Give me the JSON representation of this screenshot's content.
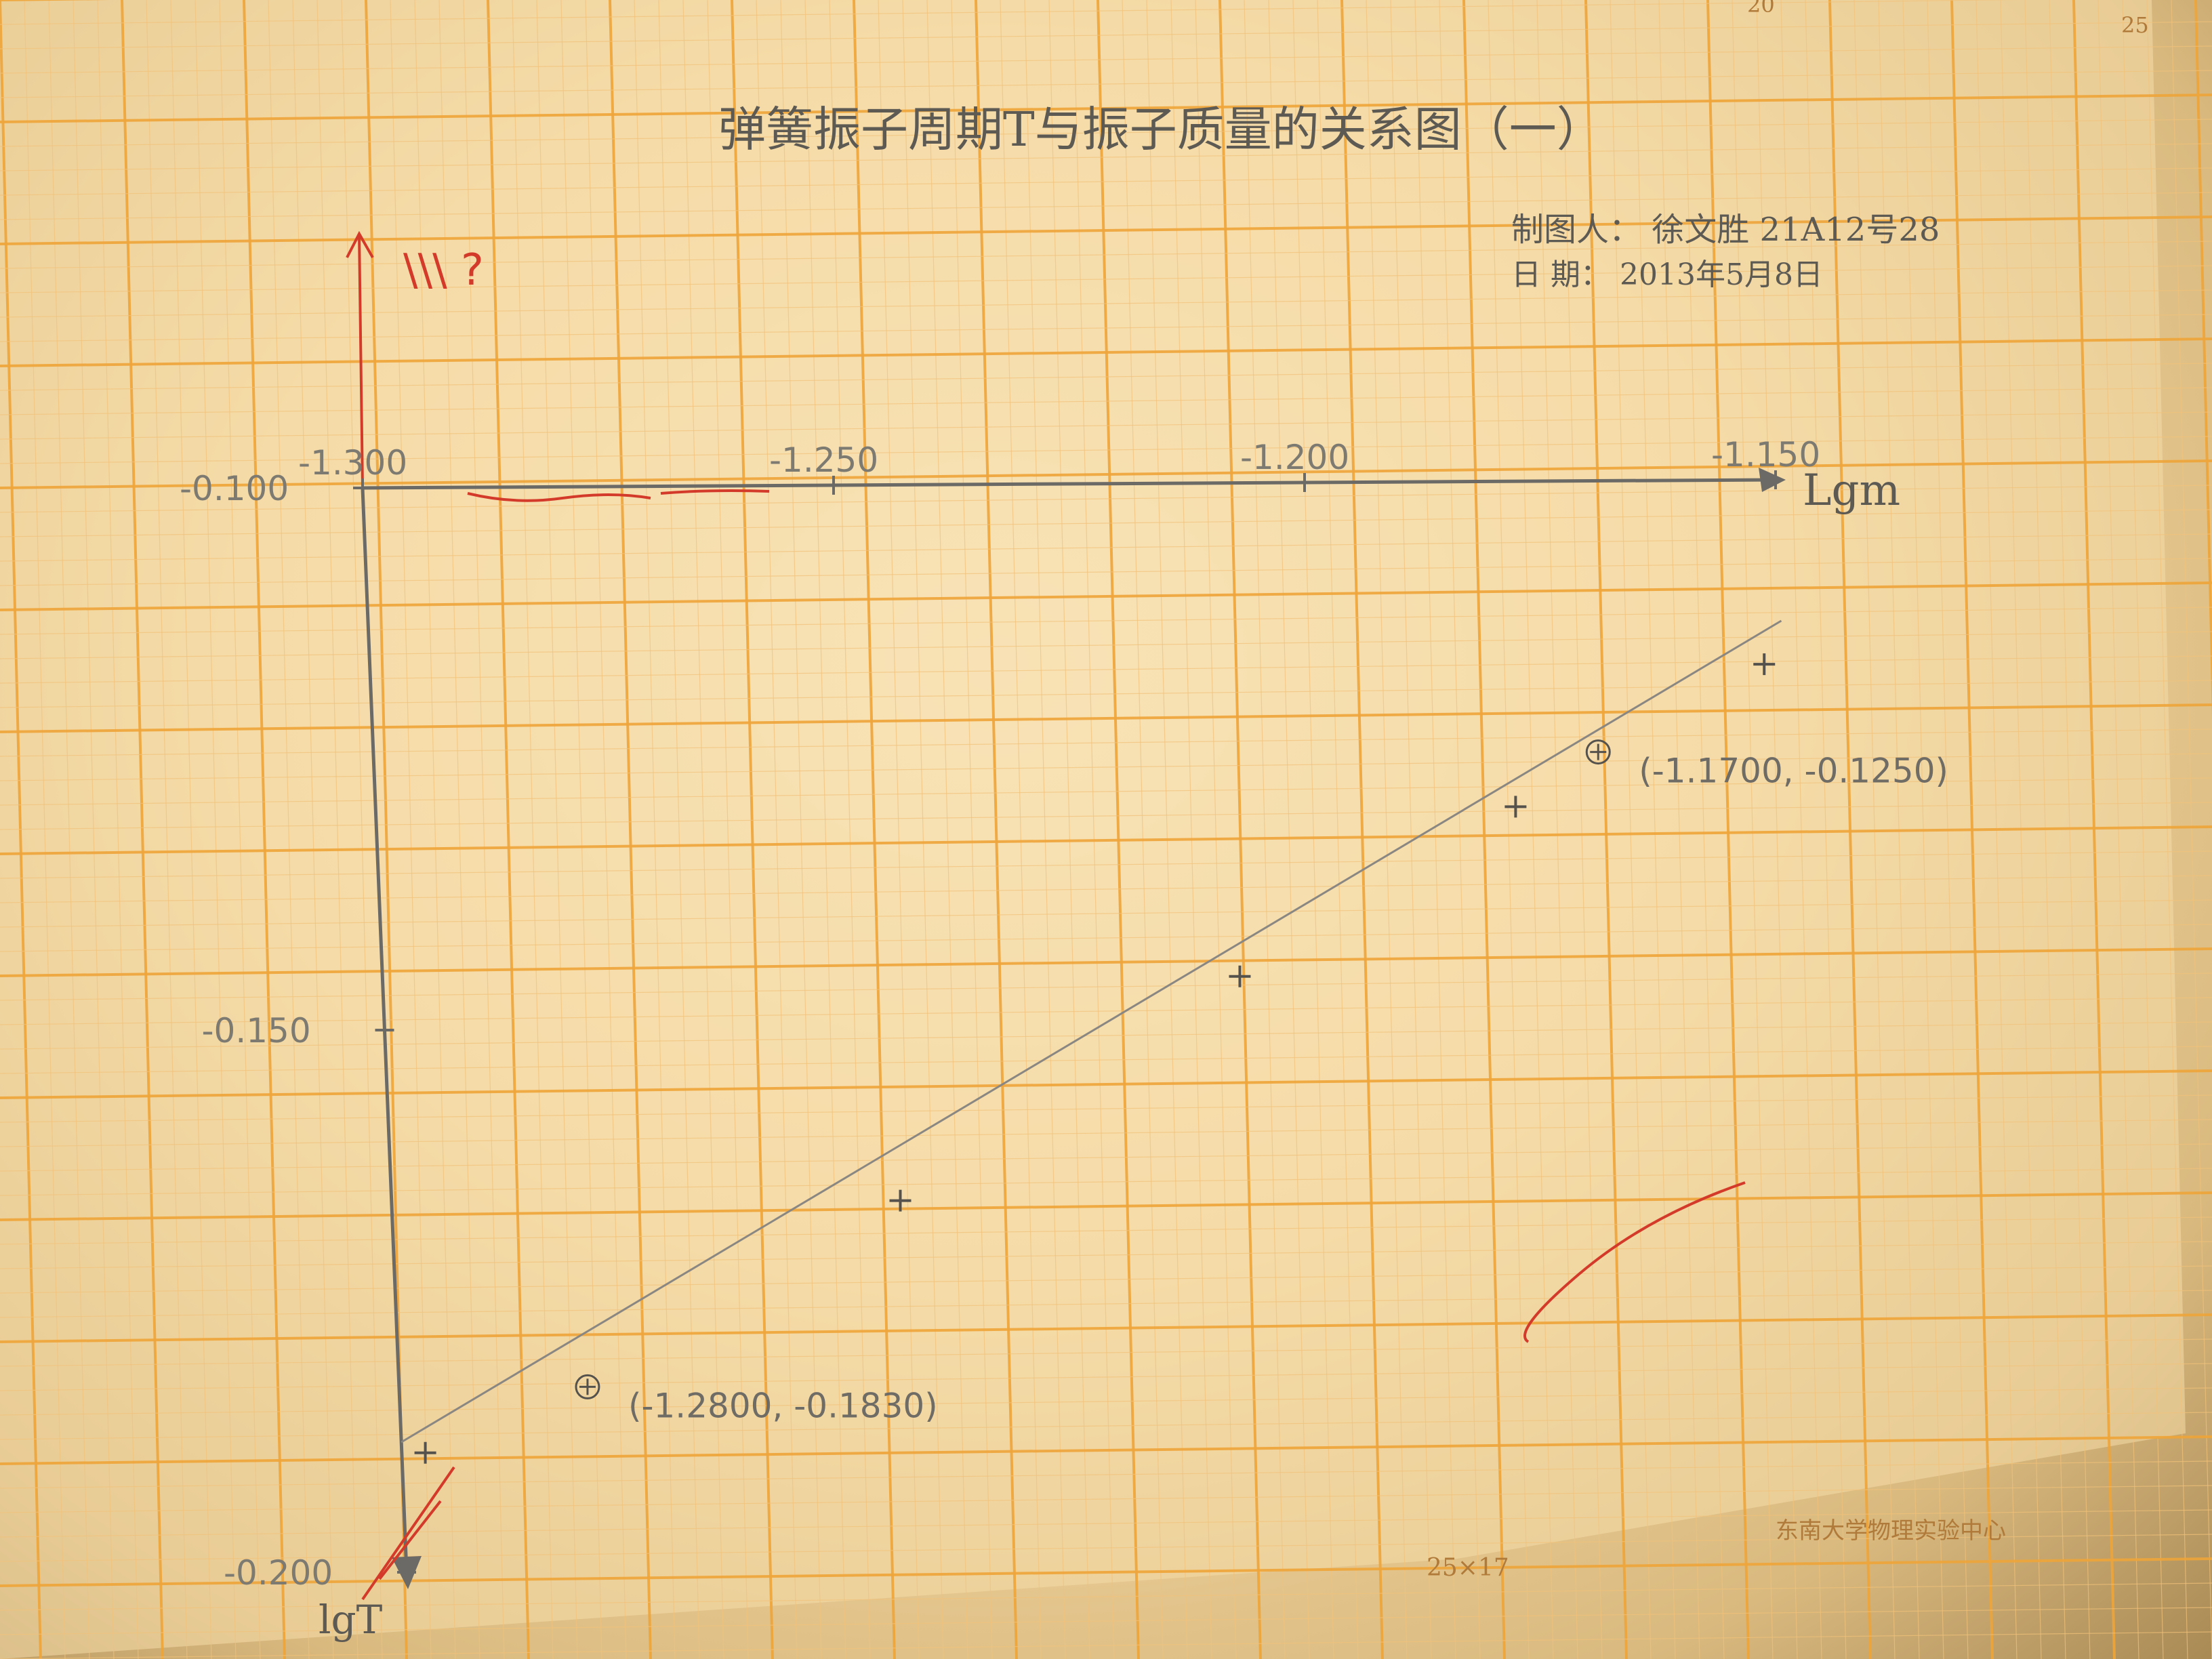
{
  "chart_data": {
    "type": "line",
    "title": "弹簧振子周期T与振子质量的关系图（一）",
    "xlabel": "Lgm",
    "ylabel": "lgT",
    "xlim": [
      -1.3,
      -1.15
    ],
    "ylim": [
      -0.1,
      -0.2
    ],
    "y_axis_direction": "down",
    "x_ticks": [
      "-1.300",
      "-1.250",
      "-1.200",
      "-1.150"
    ],
    "x_tick_values": [
      -1.3,
      -1.25,
      -1.2,
      -1.15
    ],
    "y_ticks": [
      "-0.100",
      "-0.150",
      "-0.200"
    ],
    "y_tick_values": [
      -0.1,
      -0.15,
      -0.2
    ],
    "grid": true,
    "series": [
      {
        "values": [
          {
            "x": -1.2975,
            "y": -0.189
          },
          {
            "x": -1.246,
            "y": -0.166
          },
          {
            "x": -1.209,
            "y": -0.1455
          },
          {
            "x": -1.179,
            "y": -0.13
          },
          {
            "x": -1.152,
            "y": -0.117
          }
        ]
      }
    ],
    "fit_line": [
      {
        "x": -1.3,
        "y": -0.188
      },
      {
        "x": -1.15,
        "y": -0.113
      }
    ],
    "annotations": [
      {
        "text": "(-1.2800, -0.1830)",
        "x": -1.28,
        "y": -0.183
      },
      {
        "text": "(-1.1700, -0.1250)",
        "x": -1.17,
        "y": -0.125
      }
    ]
  },
  "author_line": "制图人：  徐文胜   21A12号28",
  "date_line": "日    期：  2013年5月8日",
  "red_mark": "\\\\\\ ?",
  "paper_label": "东南大学物理实验中心",
  "paper_size": "25×17",
  "paper_top_numbers": [
    "20",
    "25"
  ],
  "colors": {
    "grid_major": "#efa53a",
    "grid_minor": "#f2c27a",
    "pencil": "#6c6a66",
    "red_pen": "#d43a2a"
  }
}
